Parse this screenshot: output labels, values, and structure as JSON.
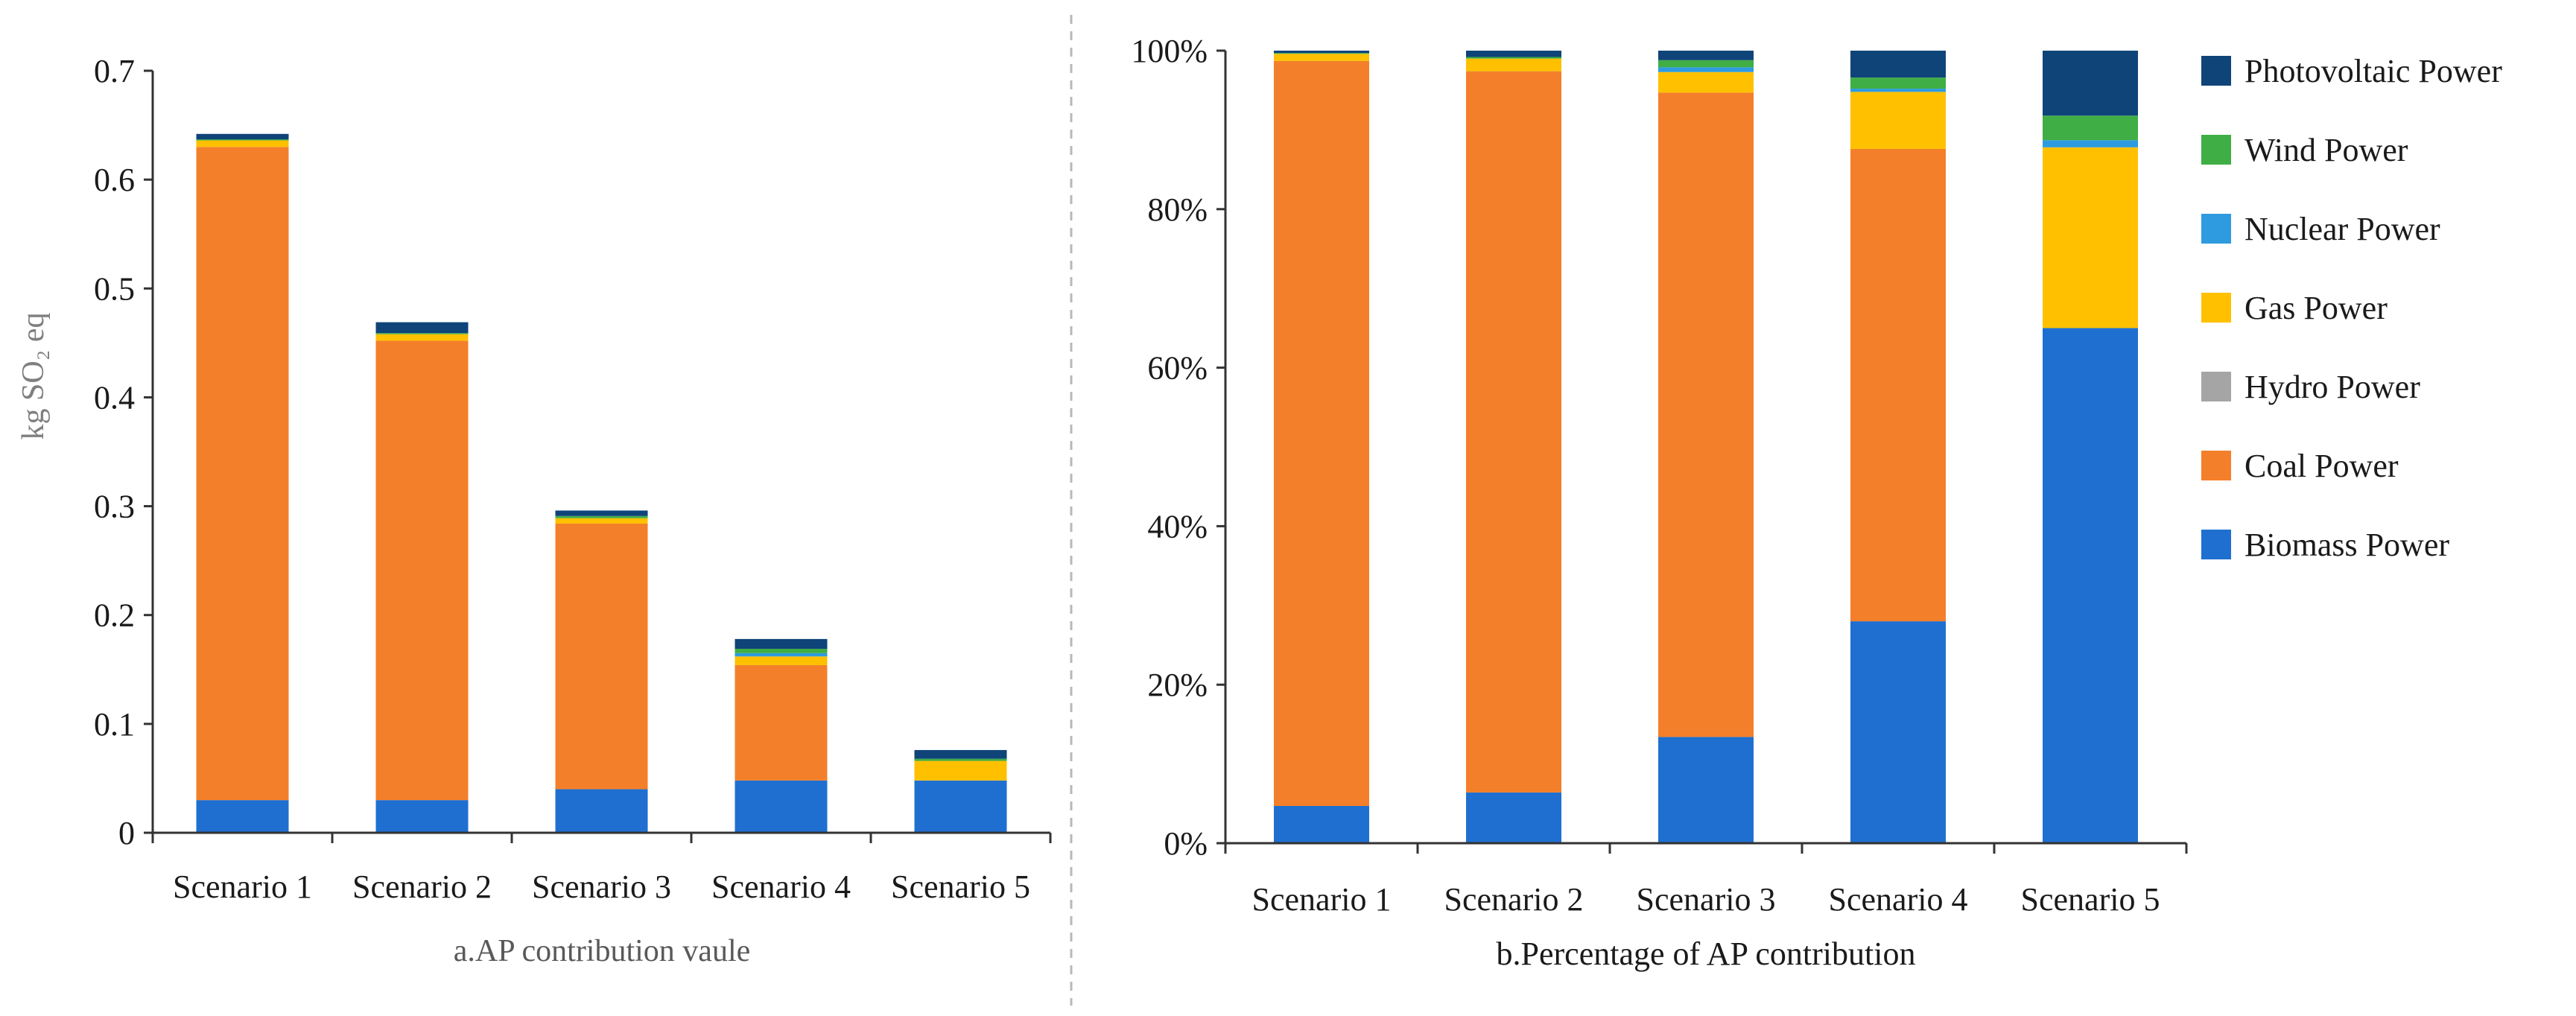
{
  "chart_data": [
    {
      "type": "bar",
      "stacked": true,
      "categories": [
        "Scenario 1",
        "Scenario 2",
        "Scenario 3",
        "Scenario 4",
        "Scenario 5"
      ],
      "series": [
        {
          "name": "Biomass Power",
          "color": "#1f6fd0",
          "values": [
            0.03,
            0.03,
            0.04,
            0.048,
            0.048
          ]
        },
        {
          "name": "Coal Power",
          "color": "#f47f2a",
          "values": [
            0.6,
            0.422,
            0.244,
            0.106,
            0.0
          ]
        },
        {
          "name": "Hydro Power",
          "color": "#a5a5a5",
          "values": [
            0.0,
            0.0,
            0.0,
            0.0,
            0.0
          ]
        },
        {
          "name": "Gas Power",
          "color": "#ffc000",
          "values": [
            0.006,
            0.006,
            0.005,
            0.008,
            0.018
          ]
        },
        {
          "name": "Nuclear Power",
          "color": "#2e9be0",
          "values": [
            0.0,
            0.0,
            0.0,
            0.003,
            0.0
          ]
        },
        {
          "name": "Wind Power",
          "color": "#3fae45",
          "values": [
            0.001,
            0.001,
            0.002,
            0.004,
            0.002
          ]
        },
        {
          "name": "Photovoltaic Power",
          "color": "#0f4479",
          "values": [
            0.005,
            0.01,
            0.005,
            0.009,
            0.008
          ]
        }
      ],
      "ylabel": "kg SO₂ eq",
      "ylim": [
        0,
        0.7
      ],
      "yticks": [
        "0",
        "0.1",
        "0.2",
        "0.3",
        "0.4",
        "0.5",
        "0.6",
        "0.7"
      ],
      "caption": "a.AP contribution vaule",
      "grid": false
    },
    {
      "type": "bar",
      "stacked": true,
      "percent": true,
      "categories": [
        "Scenario 1",
        "Scenario 2",
        "Scenario 3",
        "Scenario 4",
        "Scenario 5"
      ],
      "series": [
        {
          "name": "Biomass Power",
          "color": "#1f6fd0",
          "values": [
            4.7,
            6.4,
            13.4,
            28.0,
            65.0
          ]
        },
        {
          "name": "Coal Power",
          "color": "#f47f2a",
          "values": [
            94.0,
            91.0,
            81.3,
            59.6,
            0.0
          ]
        },
        {
          "name": "Hydro Power",
          "color": "#a5a5a5",
          "values": [
            0.0,
            0.0,
            0.0,
            0.0,
            0.0
          ]
        },
        {
          "name": "Gas Power",
          "color": "#ffc000",
          "values": [
            0.9,
            1.6,
            2.6,
            7.2,
            22.8
          ]
        },
        {
          "name": "Nuclear Power",
          "color": "#2e9be0",
          "values": [
            0.0,
            0.0,
            0.6,
            0.4,
            0.9
          ]
        },
        {
          "name": "Wind Power",
          "color": "#3fae45",
          "values": [
            0.1,
            0.2,
            0.9,
            1.4,
            3.1
          ]
        },
        {
          "name": "Photovoltaic Power",
          "color": "#0f4479",
          "values": [
            0.3,
            0.8,
            1.2,
            3.4,
            8.2
          ]
        }
      ],
      "ylim": [
        0,
        100
      ],
      "yticks": [
        "0%",
        "20%",
        "40%",
        "60%",
        "80%",
        "100%"
      ],
      "caption": "b.Percentage of AP contribution",
      "legend": "right",
      "legend_order": [
        "Photovoltaic Power",
        "Wind Power",
        "Nuclear Power",
        "Gas Power",
        "Hydro Power",
        "Coal Power",
        "Biomass Power"
      ],
      "grid": false
    }
  ]
}
